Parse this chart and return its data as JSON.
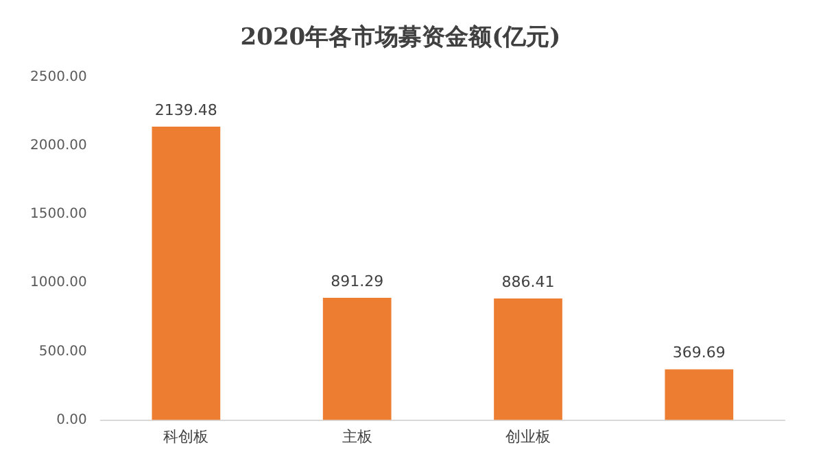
{
  "chart_data": {
    "type": "bar",
    "title": "2020年各市场募资金额(亿元)",
    "categories": [
      "科创板",
      "主板",
      "创业板",
      null
    ],
    "values": [
      2139.48,
      891.29,
      886.41,
      369.69
    ],
    "color": "#ed7d31",
    "ylim": [
      0,
      2500
    ],
    "yticks": [
      {
        "value": 0,
        "label": "0.00"
      },
      {
        "value": 500,
        "label": "500.00"
      },
      {
        "value": 1000,
        "label": "1000.00"
      },
      {
        "value": 1500,
        "label": "1500.00"
      },
      {
        "value": 2000,
        "label": "2000.00"
      },
      {
        "value": 2500,
        "label": "2500.00"
      }
    ],
    "grid": false,
    "legend": false,
    "data_labels": true
  }
}
